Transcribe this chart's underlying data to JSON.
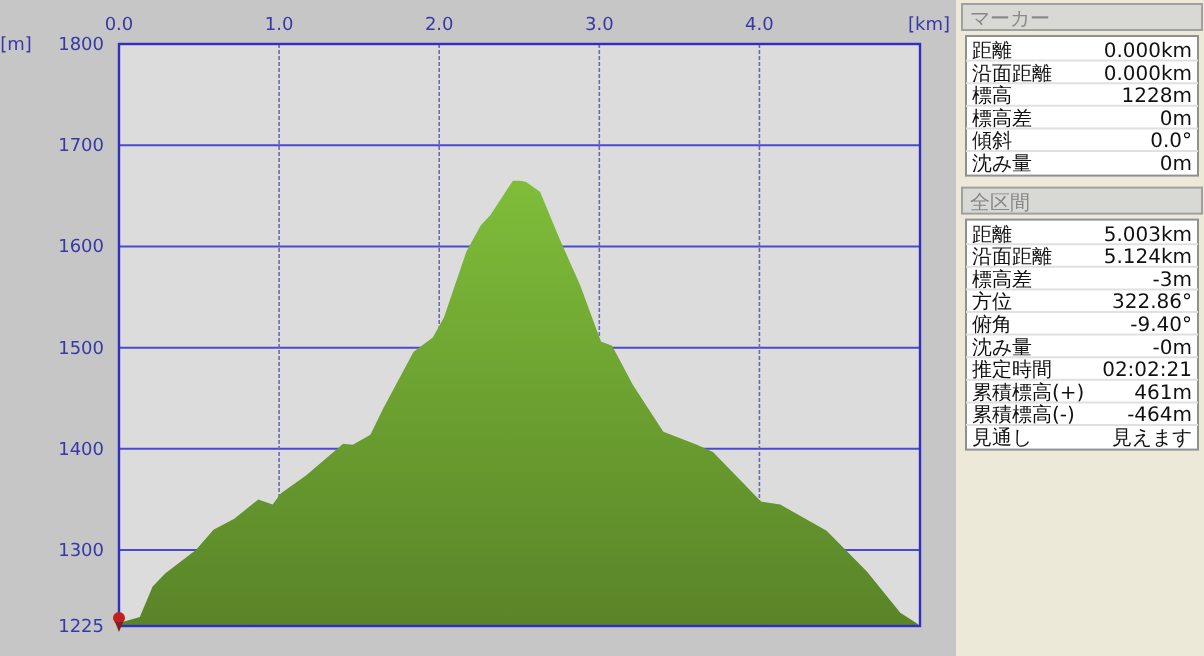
{
  "chart_data": [
    {
      "type": "area",
      "xlabel": "[km]",
      "ylabel": "[m]",
      "xlim": [
        0,
        5.003
      ],
      "ylim": [
        1225,
        1800
      ],
      "xticks": [
        {
          "value": 0,
          "label": "0.0"
        },
        {
          "value": 1,
          "label": "1.0"
        },
        {
          "value": 2,
          "label": "2.0"
        },
        {
          "value": 3,
          "label": "3.0"
        },
        {
          "value": 4,
          "label": "4.0"
        }
      ],
      "yticks": [
        1225,
        1300,
        1400,
        1500,
        1600,
        1700,
        1800
      ],
      "grid": true,
      "series": [
        {
          "color": "#6a9e30",
          "x": [
            0,
            0.13,
            0.21,
            0.29,
            0.48,
            0.59,
            0.72,
            0.87,
            0.96,
            1.01,
            1.17,
            1.4,
            1.46,
            1.57,
            1.65,
            1.84,
            1.96,
            2.03,
            2.17,
            2.26,
            2.32,
            2.46,
            2.5,
            2.54,
            2.63,
            2.75,
            2.88,
            3.01,
            3.08,
            3.21,
            3.4,
            3.61,
            3.71,
            4.01,
            4.13,
            4.42,
            4.67,
            4.88,
            4.98,
            5.003
          ],
          "values": [
            1228,
            1234,
            1264,
            1277,
            1300,
            1320,
            1331,
            1350,
            1345,
            1356,
            1374,
            1405,
            1404,
            1414,
            1440,
            1496,
            1510,
            1530,
            1595,
            1621,
            1631,
            1665,
            1665,
            1664,
            1654,
            1608,
            1562,
            1506,
            1502,
            1463,
            1417,
            1404,
            1397,
            1348,
            1345,
            1319,
            1279,
            1238,
            1228,
            1225
          ]
        }
      ]
    },
    {
      "type": "other",
      "title": "マーカー",
      "annotations": [
        "距離",
        "0.000km",
        "沿面距離",
        "0.000km",
        "標高",
        "1228m",
        "標高差",
        "0m",
        "傾斜",
        "0.0°",
        "沈み量",
        "0m"
      ]
    },
    {
      "type": "other",
      "title": "全区間",
      "annotations": [
        "距離",
        "5.003km",
        "沿面距離",
        "5.124km",
        "標高差",
        "-3m",
        "方位",
        "322.86°",
        "俯角",
        "-9.40°",
        "沈み量",
        "-0m",
        "推定時間",
        "02:02:21",
        "累積標高(+)",
        "461m",
        "累積標高(-)",
        "-464m",
        "見通し",
        "見えます"
      ]
    }
  ]
}
